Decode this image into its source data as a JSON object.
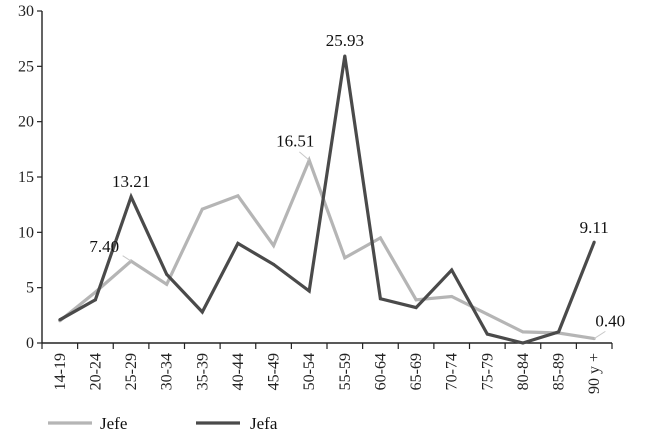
{
  "chart_data": {
    "type": "line",
    "categories": [
      "14-19",
      "20-24",
      "25-29",
      "30-34",
      "35-39",
      "40-44",
      "45-49",
      "50-54",
      "55-59",
      "60-64",
      "65-69",
      "70-74",
      "75-79",
      "80-84",
      "85-89",
      "90 y +"
    ],
    "ylim": [
      0,
      30
    ],
    "yticks": [
      0,
      5,
      10,
      15,
      20,
      25,
      30
    ],
    "ytick_labels": [
      "0",
      "5",
      "10",
      "15",
      "20",
      "25",
      "30"
    ],
    "xlabel": "",
    "ylabel": "",
    "grid": false,
    "legend_position": "bottom-left",
    "series": [
      {
        "name": "Jefe",
        "color": "#b5b5b5",
        "values": [
          2.0,
          4.6,
          7.4,
          5.3,
          12.1,
          13.3,
          8.8,
          16.51,
          7.7,
          9.5,
          3.9,
          4.2,
          2.6,
          1.0,
          0.9,
          0.4
        ]
      },
      {
        "name": "Jefa",
        "color": "#4a4a4a",
        "values": [
          2.1,
          3.9,
          13.21,
          6.2,
          2.8,
          9.0,
          7.1,
          4.7,
          25.93,
          4.0,
          3.2,
          6.6,
          0.8,
          0.0,
          1.0,
          9.11
        ]
      }
    ],
    "annotations": [
      {
        "series": "Jefe",
        "category": "25-29",
        "text": "7.40"
      },
      {
        "series": "Jefe",
        "category": "50-54",
        "text": "16.51"
      },
      {
        "series": "Jefe",
        "category": "90 y +",
        "text": "0.40"
      },
      {
        "series": "Jefa",
        "category": "25-29",
        "text": "13.21"
      },
      {
        "series": "Jefa",
        "category": "55-59",
        "text": "25.93"
      },
      {
        "series": "Jefa",
        "category": "90 y +",
        "text": "9.11"
      }
    ]
  }
}
